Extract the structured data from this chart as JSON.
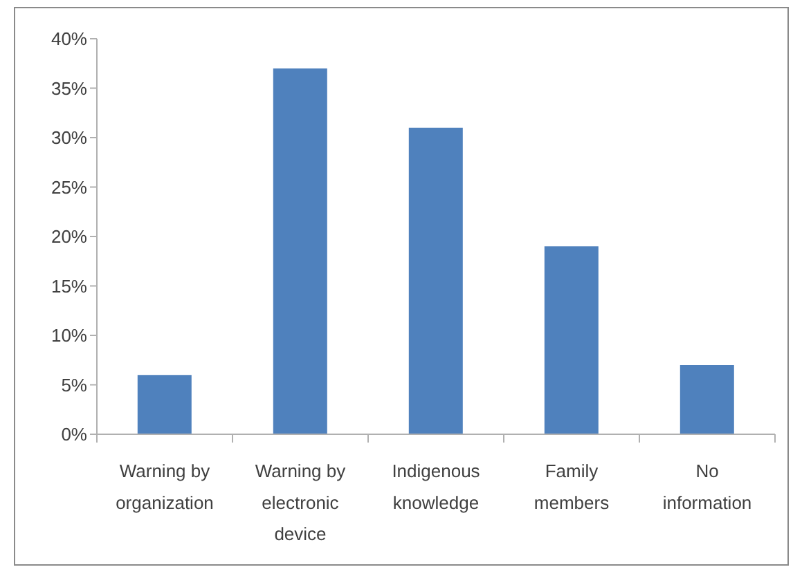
{
  "chart_data": {
    "type": "bar",
    "categories": [
      "Warning by organization",
      "Warning by electronic device",
      "Indigenous knowledge",
      "Family members",
      "No information"
    ],
    "values": [
      6,
      37,
      31,
      19,
      7
    ],
    "color": "#4f81bd",
    "ylim": [
      0,
      40
    ],
    "yticks": [
      {
        "value": 0,
        "label": "0%"
      },
      {
        "value": 5,
        "label": "5%"
      },
      {
        "value": 10,
        "label": "10%"
      },
      {
        "value": 15,
        "label": "15%"
      },
      {
        "value": 20,
        "label": "20%"
      },
      {
        "value": 25,
        "label": "25%"
      },
      {
        "value": 30,
        "label": "30%"
      },
      {
        "value": 35,
        "label": "35%"
      },
      {
        "value": 40,
        "label": "40%"
      }
    ]
  }
}
